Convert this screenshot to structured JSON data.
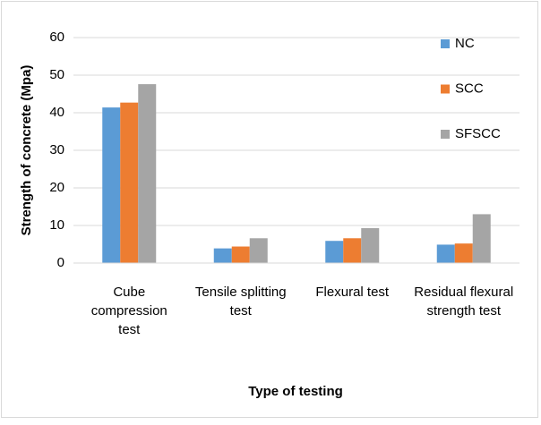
{
  "chart_data": {
    "type": "bar",
    "categories": [
      "Cube compression test",
      "Tensile splitting test",
      "Flexural test",
      "Residual flexural strength test"
    ],
    "series": [
      {
        "name": "NC",
        "color": "#5b9bd5",
        "values": [
          41.4,
          3.9,
          5.9,
          4.9
        ]
      },
      {
        "name": "SCC",
        "color": "#ed7d31",
        "values": [
          42.7,
          4.4,
          6.6,
          5.2
        ]
      },
      {
        "name": "SFSCC",
        "color": "#a5a5a5",
        "values": [
          47.6,
          6.6,
          9.3,
          13.0
        ]
      }
    ],
    "y_label": "Strength of concrete (Mpa)",
    "x_label": "Type of testing",
    "ylim": [
      0,
      60
    ],
    "yticks": [
      0,
      10,
      20,
      30,
      40,
      50,
      60
    ],
    "grid": true,
    "legend": "upper right"
  }
}
